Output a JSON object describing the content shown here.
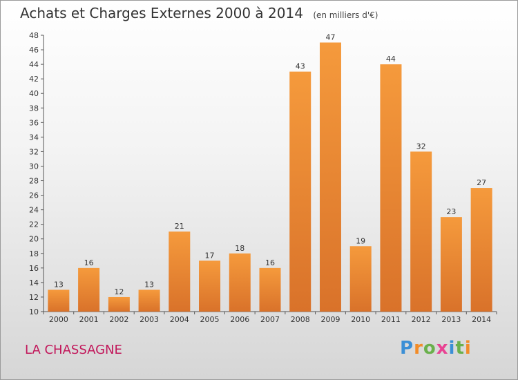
{
  "chart_data": {
    "type": "bar",
    "title": "Achats et Charges Externes 2000 à 2014",
    "subtitle": "(en milliers d'€)",
    "categories": [
      "2000",
      "2001",
      "2002",
      "2003",
      "2004",
      "2005",
      "2006",
      "2007",
      "2008",
      "2009",
      "2010",
      "2011",
      "2012",
      "2013",
      "2014"
    ],
    "values": [
      13,
      16,
      12,
      13,
      21,
      17,
      18,
      16,
      43,
      47,
      19,
      44,
      32,
      23,
      27
    ],
    "ylim": [
      10,
      48
    ],
    "yticks": [
      10,
      12,
      14,
      16,
      18,
      20,
      22,
      24,
      26,
      28,
      30,
      32,
      34,
      36,
      38,
      40,
      42,
      44,
      46,
      48
    ],
    "grid": false,
    "bar_color": "#f59a3c",
    "bar_color_dark": "#d9722a"
  },
  "footer": {
    "place": "LA CHASSAGNE",
    "brand": "Proxiti"
  }
}
